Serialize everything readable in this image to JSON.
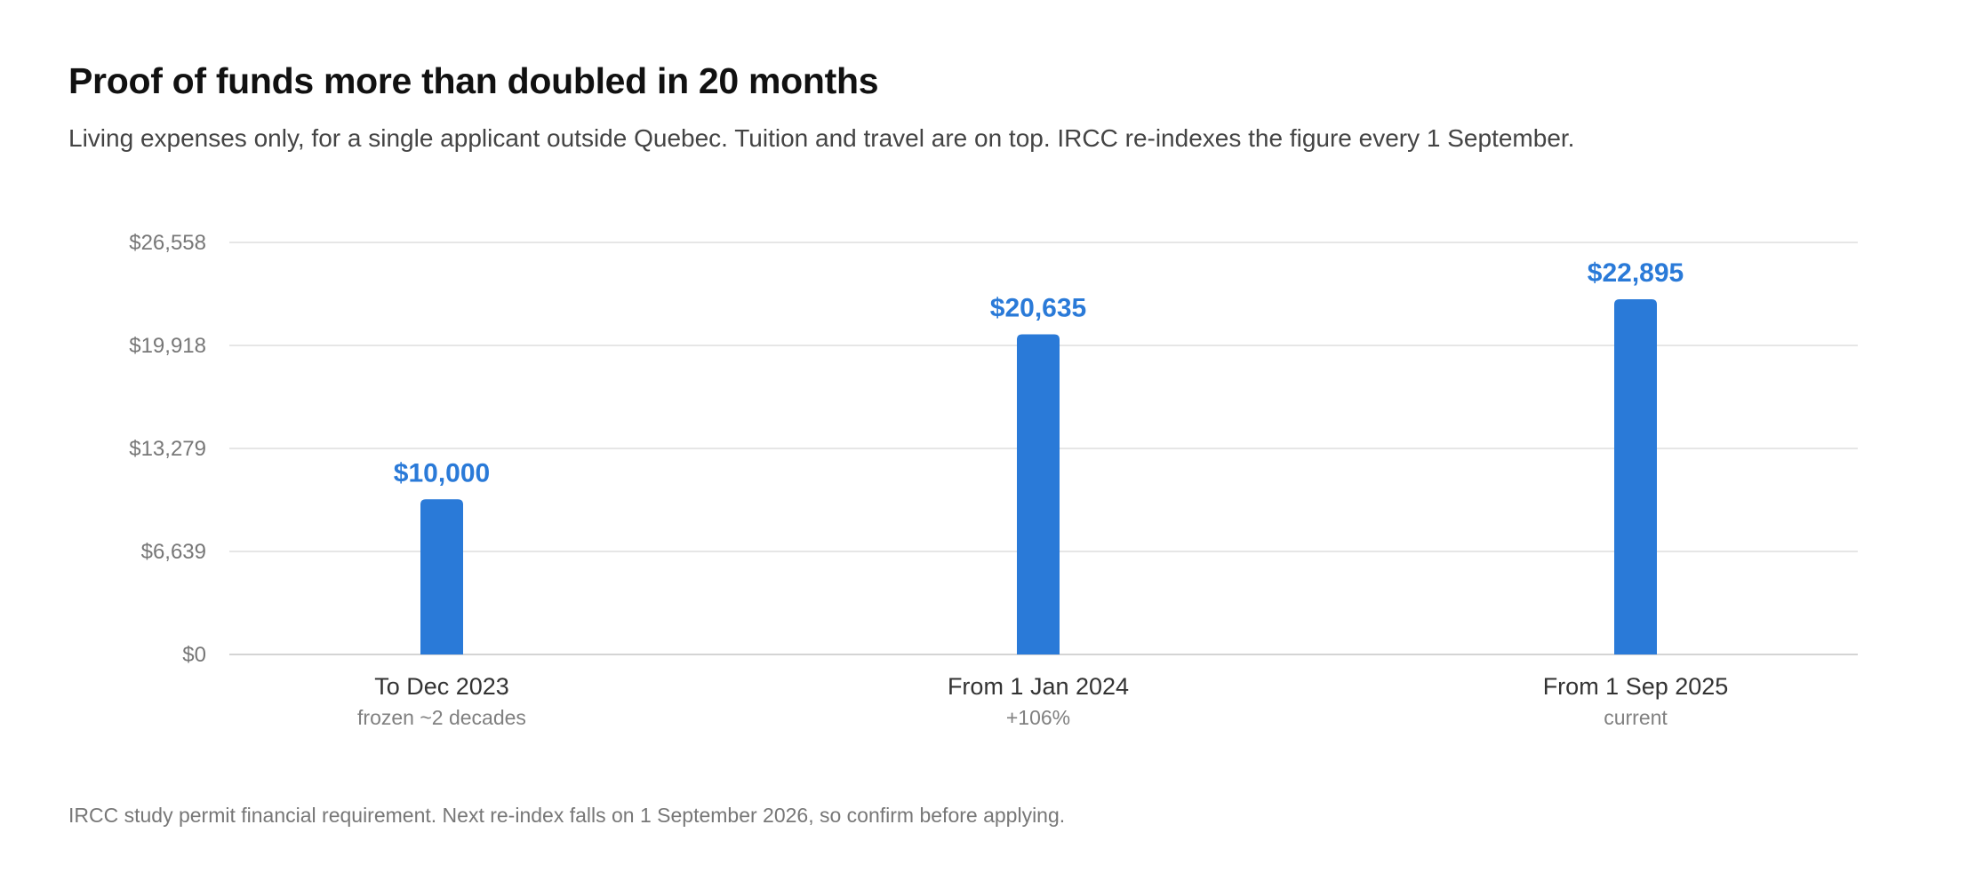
{
  "header": {
    "title": "Proof of funds more than doubled in 20 months",
    "subtitle": "Living expenses only, for a single applicant outside Quebec. Tuition and travel are on top. IRCC re-indexes the figure every 1 September."
  },
  "footnote": "IRCC study permit financial requirement. Next re-index falls on 1 September 2026, so confirm before applying.",
  "colors": {
    "bar": "#2a7ad8",
    "value_label": "#2a7ad8",
    "gridline": "#dddddd"
  },
  "chart_data": {
    "type": "bar",
    "title": "Proof of funds more than doubled in 20 months",
    "subtitle": "Living expenses only, for a single applicant outside Quebec. Tuition and travel are on top. IRCC re-indexes the figure every 1 September.",
    "xlabel": "",
    "ylabel": "",
    "categories": [
      "To Dec 2023",
      "From 1 Jan 2024",
      "From 1 Sep 2025"
    ],
    "category_sublabels": [
      "frozen ~2 decades",
      "+106%",
      "current"
    ],
    "values": [
      10000,
      20635,
      22895
    ],
    "value_labels": [
      "$10,000",
      "$20,635",
      "$22,895"
    ],
    "ylim": [
      0,
      26558
    ],
    "y_ticks": [
      0,
      6639,
      13279,
      19918,
      26558
    ],
    "y_tick_labels": [
      "$0",
      "$6,639",
      "$13,279",
      "$19,918",
      "$26,558"
    ],
    "grid": true,
    "legend": "none"
  }
}
